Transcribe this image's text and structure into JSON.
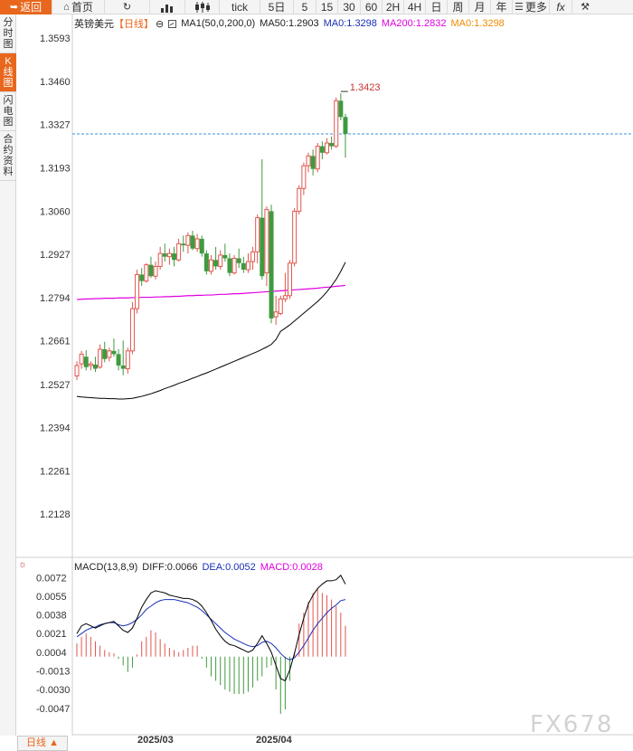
{
  "toolbar": {
    "back": "返回",
    "home": "首页",
    "tick": "tick",
    "periods": [
      "5日",
      "5",
      "15",
      "30",
      "60",
      "2H",
      "4H",
      "日",
      "周",
      "月",
      "年"
    ],
    "more": "更多",
    "fx": "fx"
  },
  "left_tabs": [
    "分时图",
    "K线图",
    "闪电图",
    "合约资料"
  ],
  "legend": {
    "symbol": "英镑美元",
    "period": "【日线】",
    "settings_glyph": "⊖",
    "ma1": "MA1(50,0,200,0)",
    "ma50": "MA50:1.2903",
    "ma0": "MA0:1.3298",
    "ma200": "MA200:1.2832",
    "ma0b": "MA0:1.3298"
  },
  "macd_legend": {
    "name": "MACD(13,8,9)",
    "diff": "DIFF:0.0066",
    "dea": "DEA:0.0052",
    "macd": "MACD:0.0028"
  },
  "bottom": {
    "period_select": "日线 ▲",
    "dates": [
      "2025/03",
      "2025/04"
    ]
  },
  "watermark": "FX678",
  "colors": {
    "accent": "#e8671d",
    "up": "#e0564f",
    "down": "#3f9a3f",
    "ma50": "#000000",
    "ma200": "#e000e0",
    "diff": "#000000",
    "dea": "#1a2fb5"
  },
  "chart_data": [
    {
      "type": "candlestick",
      "title": "英镑美元【日线】",
      "y_ticks": [
        "1.3593",
        "1.3460",
        "1.3327",
        "1.3193",
        "1.3060",
        "1.2927",
        "1.2794",
        "1.2661",
        "1.2527",
        "1.2394",
        "1.2261",
        "1.2128"
      ],
      "ylim": [
        1.2,
        1.366
      ],
      "high_marker": "1.3423",
      "last_price": 1.3298,
      "x_labels": [
        "2025/03",
        "2025/04"
      ],
      "ohlc": [
        [
          1.2553,
          1.2598,
          1.254,
          1.2585
        ],
        [
          1.259,
          1.263,
          1.2575,
          1.262
        ],
        [
          1.2612,
          1.2632,
          1.257,
          1.258
        ],
        [
          1.2585,
          1.2598,
          1.257,
          1.259
        ],
        [
          1.2588,
          1.2612,
          1.2565,
          1.2575
        ],
        [
          1.258,
          1.265,
          1.2575,
          1.2635
        ],
        [
          1.2635,
          1.2658,
          1.2595,
          1.2605
        ],
        [
          1.261,
          1.264,
          1.2598,
          1.263
        ],
        [
          1.263,
          1.2668,
          1.2612,
          1.262
        ],
        [
          1.262,
          1.2635,
          1.257,
          1.2585
        ],
        [
          1.2585,
          1.2662,
          1.2555,
          1.2575
        ],
        [
          1.2575,
          1.264,
          1.256,
          1.263
        ],
        [
          1.263,
          1.278,
          1.262,
          1.276
        ],
        [
          1.276,
          1.288,
          1.2745,
          1.2865
        ],
        [
          1.2865,
          1.2885,
          1.283,
          1.2845
        ],
        [
          1.2845,
          1.29,
          1.284,
          1.2895
        ],
        [
          1.2895,
          1.292,
          1.2855,
          1.286
        ],
        [
          1.286,
          1.2905,
          1.285,
          1.289
        ],
        [
          1.289,
          1.295,
          1.288,
          1.293
        ],
        [
          1.293,
          1.296,
          1.2905,
          1.292
        ],
        [
          1.292,
          1.2945,
          1.2895,
          1.293
        ],
        [
          1.293,
          1.295,
          1.289,
          1.291
        ],
        [
          1.291,
          1.2975,
          1.2905,
          1.296
        ],
        [
          1.296,
          1.2985,
          1.2935,
          1.2955
        ],
        [
          1.2955,
          1.2995,
          1.293,
          1.2985
        ],
        [
          1.2985,
          1.3,
          1.294,
          1.2945
        ],
        [
          1.2945,
          1.299,
          1.2935,
          1.2975
        ],
        [
          1.2975,
          1.2985,
          1.292,
          1.293
        ],
        [
          1.293,
          1.294,
          1.2865,
          1.2875
        ],
        [
          1.2875,
          1.2925,
          1.2865,
          1.291
        ],
        [
          1.291,
          1.295,
          1.288,
          1.289
        ],
        [
          1.289,
          1.294,
          1.288,
          1.2925
        ],
        [
          1.2925,
          1.296,
          1.2905,
          1.2915
        ],
        [
          1.2915,
          1.293,
          1.286,
          1.287
        ],
        [
          1.287,
          1.2925,
          1.2865,
          1.2915
        ],
        [
          1.2915,
          1.2945,
          1.2885,
          1.29
        ],
        [
          1.29,
          1.292,
          1.287,
          1.288
        ],
        [
          1.288,
          1.293,
          1.287,
          1.2905
        ],
        [
          1.2905,
          1.295,
          1.288,
          1.2935
        ],
        [
          1.2935,
          1.305,
          1.29,
          1.304
        ],
        [
          1.304,
          1.322,
          1.285,
          1.286
        ],
        [
          1.287,
          1.3075,
          1.283,
          1.3065
        ],
        [
          1.306,
          1.308,
          1.2715,
          1.273
        ],
        [
          1.2735,
          1.28,
          1.271,
          1.275
        ],
        [
          1.2745,
          1.28,
          1.274,
          1.279
        ],
        [
          1.279,
          1.287,
          1.278,
          1.28
        ],
        [
          1.28,
          1.291,
          1.279,
          1.29
        ],
        [
          1.29,
          1.307,
          1.289,
          1.306
        ],
        [
          1.306,
          1.314,
          1.305,
          1.313
        ],
        [
          1.313,
          1.321,
          1.311,
          1.32
        ],
        [
          1.32,
          1.324,
          1.318,
          1.323
        ],
        [
          1.323,
          1.325,
          1.317,
          1.319
        ],
        [
          1.319,
          1.327,
          1.318,
          1.326
        ],
        [
          1.326,
          1.3275,
          1.322,
          1.324
        ],
        [
          1.324,
          1.3285,
          1.3235,
          1.327
        ],
        [
          1.327,
          1.329,
          1.325,
          1.326
        ],
        [
          1.326,
          1.341,
          1.3255,
          1.34
        ],
        [
          1.34,
          1.3423,
          1.334,
          1.335
        ],
        [
          1.335,
          1.336,
          1.3225,
          1.3298
        ]
      ],
      "ma50": [
        1.249,
        1.2488,
        1.2487,
        1.2486,
        1.2485,
        1.2484,
        1.2484,
        1.2483,
        1.2483,
        1.2482,
        1.2482,
        1.2483,
        1.2484,
        1.2487,
        1.249,
        1.2494,
        1.2498,
        1.2503,
        1.2508,
        1.2514,
        1.2519,
        1.2524,
        1.253,
        1.2535,
        1.254,
        1.2546,
        1.2551,
        1.2557,
        1.2562,
        1.2568,
        1.2574,
        1.258,
        1.2586,
        1.2592,
        1.2598,
        1.2604,
        1.261,
        1.2616,
        1.2622,
        1.2628,
        1.2635,
        1.2642,
        1.265,
        1.2665,
        1.269,
        1.27,
        1.271,
        1.2722,
        1.2734,
        1.2746,
        1.2758,
        1.277,
        1.2782,
        1.2796,
        1.2812,
        1.283,
        1.285,
        1.2875,
        1.2903
      ],
      "ma200": [
        1.2788,
        1.2789,
        1.279,
        1.279,
        1.2791,
        1.2791,
        1.2792,
        1.2792,
        1.2792,
        1.2793,
        1.2793,
        1.2793,
        1.2794,
        1.2794,
        1.2795,
        1.2795,
        1.2795,
        1.2796,
        1.2796,
        1.2797,
        1.2797,
        1.2798,
        1.2798,
        1.2799,
        1.28,
        1.28,
        1.2801,
        1.2801,
        1.2802,
        1.2802,
        1.2803,
        1.2804,
        1.2804,
        1.2805,
        1.2806,
        1.2806,
        1.2807,
        1.2808,
        1.2809,
        1.281,
        1.2811,
        1.2812,
        1.2813,
        1.2814,
        1.2815,
        1.2816,
        1.2817,
        1.2818,
        1.2819,
        1.282,
        1.2821,
        1.2822,
        1.2823,
        1.2825,
        1.2826,
        1.2827,
        1.2829,
        1.283,
        1.2832
      ]
    },
    {
      "type": "macd",
      "title": "MACD(13,8,9)",
      "y_ticks": [
        "0.0072",
        "0.0055",
        "0.0038",
        "0.0021",
        "0.0004",
        "-0.0013",
        "-0.0030",
        "-0.0047"
      ],
      "ylim": [
        -0.0062,
        0.0078
      ],
      "diff": [
        0.0021,
        0.0028,
        0.003,
        0.0028,
        0.0026,
        0.0028,
        0.003,
        0.0031,
        0.0032,
        0.0028,
        0.0024,
        0.0022,
        0.0026,
        0.0035,
        0.0045,
        0.0052,
        0.0058,
        0.006,
        0.0059,
        0.0058,
        0.0056,
        0.0055,
        0.0054,
        0.0053,
        0.0053,
        0.0052,
        0.005,
        0.0046,
        0.004,
        0.0033,
        0.0025,
        0.0019,
        0.0014,
        0.0011,
        0.001,
        0.0008,
        0.0006,
        0.0004,
        0.0006,
        0.0012,
        0.0019,
        0.0012,
        0.0004,
        -0.0008,
        -0.002,
        -0.0022,
        -0.0012,
        0.0003,
        0.002,
        0.0035,
        0.0048,
        0.0056,
        0.0062,
        0.0066,
        0.0069,
        0.0069,
        0.007,
        0.0074,
        0.0066
      ],
      "dea": [
        0.0018,
        0.0021,
        0.0024,
        0.0026,
        0.0027,
        0.0029,
        0.003,
        0.0031,
        0.0031,
        0.0029,
        0.0028,
        0.0029,
        0.0031,
        0.0034,
        0.0038,
        0.0043,
        0.0046,
        0.0049,
        0.0051,
        0.0052,
        0.0052,
        0.0052,
        0.0051,
        0.005,
        0.0049,
        0.0047,
        0.0045,
        0.0042,
        0.0038,
        0.0034,
        0.003,
        0.0026,
        0.0022,
        0.0019,
        0.0016,
        0.0014,
        0.0012,
        0.001,
        0.0009,
        0.001,
        0.0013,
        0.0014,
        0.0012,
        0.0008,
        0.0003,
        -0.0001,
        -0.0003,
        -0.0001,
        0.0004,
        0.001,
        0.0017,
        0.0024,
        0.003,
        0.0035,
        0.004,
        0.0044,
        0.0047,
        0.0051,
        0.0052
      ],
      "macd": [
        0.0012,
        0.0018,
        0.0021,
        0.0018,
        0.0014,
        0.001,
        0.0006,
        0.0004,
        0.0003,
        -0.0002,
        -0.0008,
        -0.0014,
        -0.001,
        0.0002,
        0.0014,
        0.0018,
        0.0024,
        0.0022,
        0.0016,
        0.0012,
        0.0008,
        0.0006,
        0.0004,
        0.0006,
        0.0008,
        0.001,
        0.001,
        -0.0002,
        -0.001,
        -0.0018,
        -0.0022,
        -0.0026,
        -0.003,
        -0.0032,
        -0.0034,
        -0.0034,
        -0.0034,
        -0.0032,
        -0.0028,
        -0.0022,
        -0.0018,
        -0.001,
        -0.0008,
        -0.003,
        -0.0052,
        -0.0048,
        -0.0022,
        0.0004,
        0.003,
        0.004,
        0.005,
        0.0058,
        0.0062,
        0.0058,
        0.0056,
        0.0052,
        0.0046,
        0.004,
        0.0028
      ]
    }
  ]
}
